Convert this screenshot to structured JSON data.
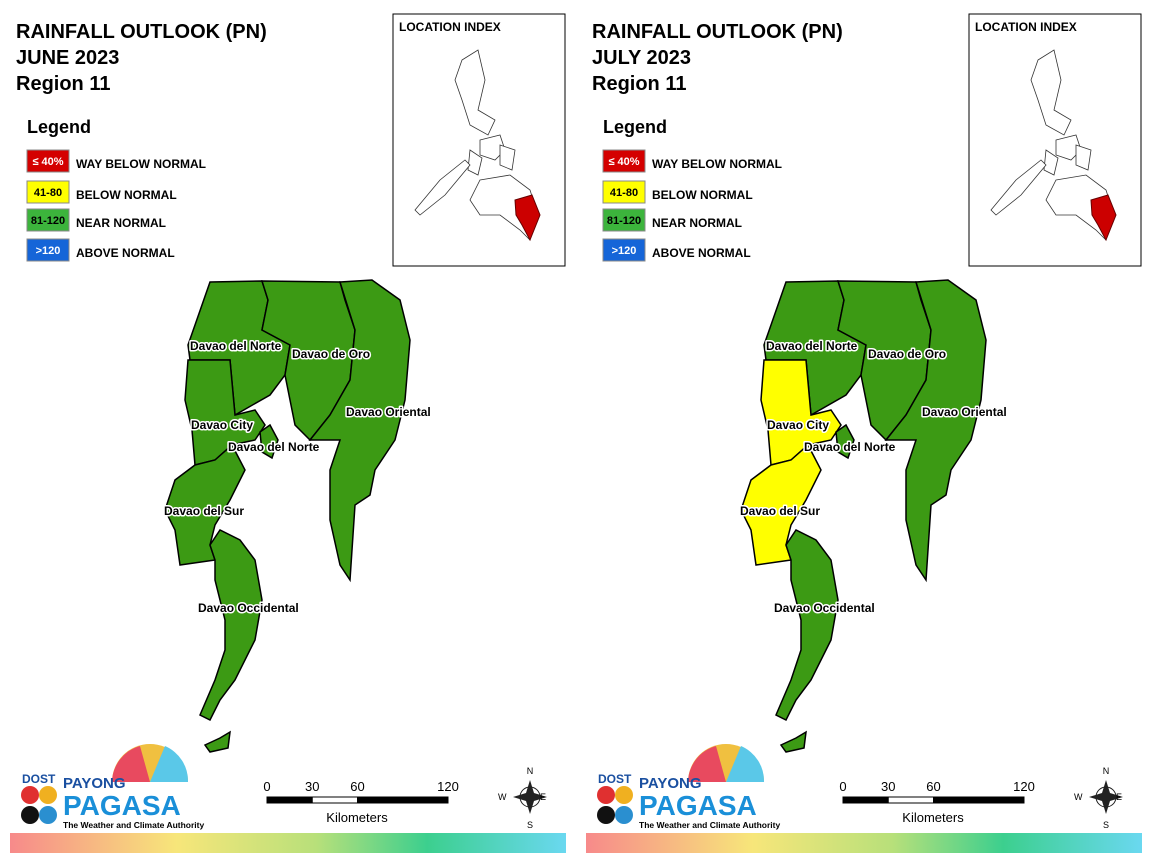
{
  "panels": [
    {
      "title": [
        "RAINFALL OUTLOOK (PN)",
        "JUNE 2023",
        "Region 11"
      ],
      "provinces": [
        {
          "name": "Davao del Norte",
          "color": "#3c9a14"
        },
        {
          "name": "Davao de Oro",
          "color": "#3c9a14"
        },
        {
          "name": "Davao Oriental",
          "color": "#3c9a14"
        },
        {
          "name": "Davao City",
          "color": "#3c9a14"
        },
        {
          "name": "Davao del Norte",
          "color": "#3c9a14"
        },
        {
          "name": "Davao del Sur",
          "color": "#3c9a14"
        },
        {
          "name": "Davao Occidental",
          "color": "#3c9a14"
        }
      ]
    },
    {
      "title": [
        "RAINFALL OUTLOOK (PN)",
        "JULY 2023",
        "Region 11"
      ],
      "provinces": [
        {
          "name": "Davao del Norte",
          "color": "#3c9a14"
        },
        {
          "name": "Davao de Oro",
          "color": "#3c9a14"
        },
        {
          "name": "Davao Oriental",
          "color": "#3c9a14"
        },
        {
          "name": "Davao City",
          "color": "#ffff00"
        },
        {
          "name": "Davao del Norte",
          "color": "#3c9a14"
        },
        {
          "name": "Davao del Sur",
          "color": "#ffff00"
        },
        {
          "name": "Davao Occidental",
          "color": "#3c9a14"
        }
      ]
    }
  ],
  "legend": {
    "title": "Legend",
    "items": [
      {
        "range": "≤ 40%",
        "label": "WAY BELOW NORMAL",
        "color": "#d40000",
        "text_color": "#ffffff"
      },
      {
        "range": "41-80",
        "label": "BELOW NORMAL",
        "color": "#ffff00",
        "text_color": "#000000"
      },
      {
        "range": "81-120",
        "label": "NEAR NORMAL",
        "color": "#3cb43c",
        "text_color": "#000000"
      },
      {
        "range": ">120",
        "label": "ABOVE NORMAL",
        "color": "#1565d8",
        "text_color": "#ffffff"
      }
    ]
  },
  "location_index": "LOCATION INDEX",
  "scale": {
    "ticks": [
      0,
      30,
      60,
      120
    ],
    "unit": "Kilometers"
  },
  "compass": {
    "n": "N",
    "e": "E",
    "s": "S",
    "w": "W"
  },
  "logo": {
    "agency": "DOST",
    "line1": "PAYONG",
    "line2": "PAGASA",
    "tagline": "The Weather and Climate Authority"
  }
}
